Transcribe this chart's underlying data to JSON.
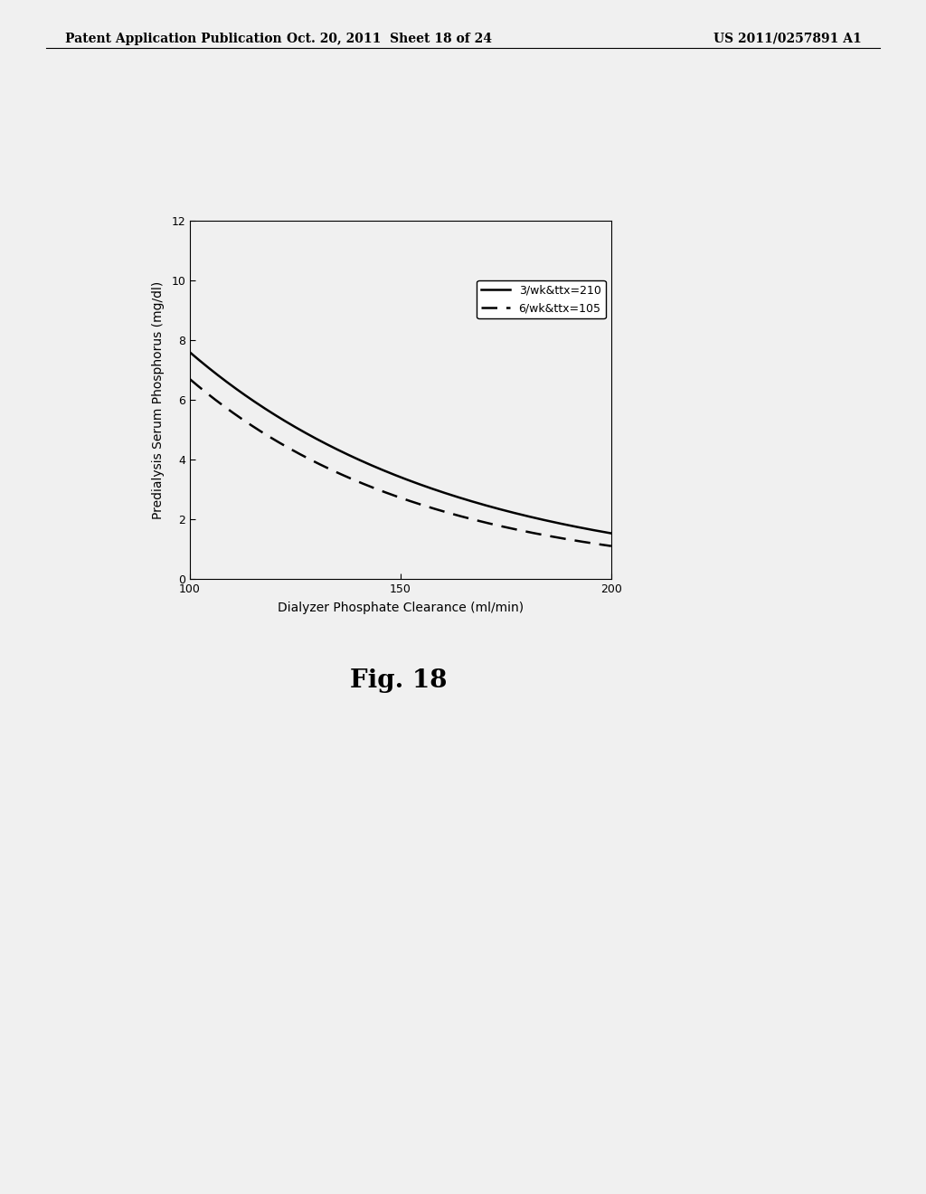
{
  "header_left": "Patent Application Publication",
  "header_mid": "Oct. 20, 2011  Sheet 18 of 24",
  "header_right": "US 2011/0257891 A1",
  "fig_caption": "Fig. 18",
  "xlabel": "Dialyzer Phosphate Clearance (ml/min)",
  "ylabel": "Predialysis Serum Phosphorus (mg/dl)",
  "xlim": [
    100,
    200
  ],
  "ylim": [
    0,
    12
  ],
  "xticks": [
    100,
    150,
    200
  ],
  "yticks": [
    0,
    2,
    4,
    6,
    8,
    10,
    12
  ],
  "legend_solid": "3/wk&ttx=210",
  "legend_dashed": "6/wk&ttx=105",
  "curve1_a": 7.6,
  "curve1_b": 0.016,
  "curve2_a": 6.7,
  "curve2_b": 0.018,
  "background_color": "#f0f0f0",
  "plot_bg_color": "#f0f0f0",
  "line_color": "#000000",
  "header_fontsize": 10,
  "axis_fontsize": 10,
  "tick_fontsize": 9,
  "legend_fontsize": 9,
  "caption_fontsize": 20
}
